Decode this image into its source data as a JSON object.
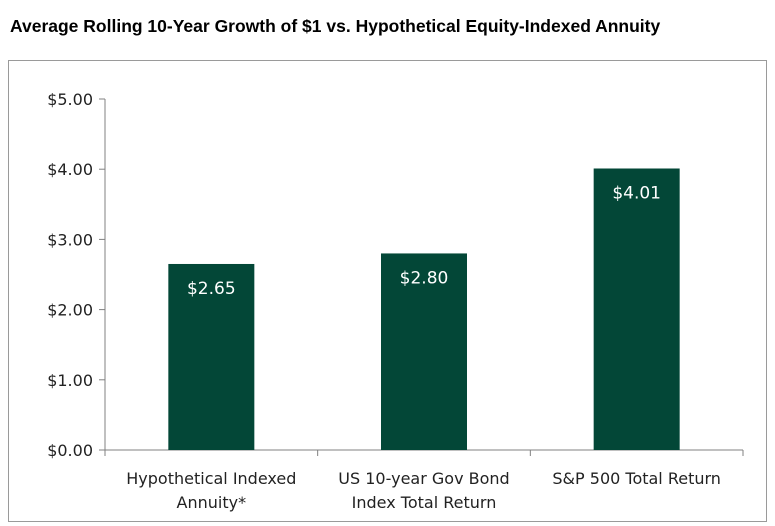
{
  "chart_data": {
    "type": "bar",
    "title": "Average Rolling 10-Year Growth of $1 vs. Hypothetical Equity-Indexed Annuity",
    "xlabel": "",
    "ylabel": "",
    "categories": [
      [
        "Hypothetical Indexed",
        "Annuity*"
      ],
      [
        "US 10-year Gov Bond",
        "Index Total Return"
      ],
      [
        "S&P 500 Total Return"
      ]
    ],
    "values": [
      2.65,
      2.8,
      4.01
    ],
    "data_labels": [
      "$2.65",
      "$2.80",
      "$4.01"
    ],
    "ylim": [
      0,
      5
    ],
    "yticks": [
      0,
      1,
      2,
      3,
      4,
      5
    ],
    "ytick_labels": [
      "$0.00",
      "$1.00",
      "$2.00",
      "$3.00",
      "$4.00",
      "$5.00"
    ],
    "grid": false,
    "legend": "none",
    "bar_color": "#034737"
  }
}
